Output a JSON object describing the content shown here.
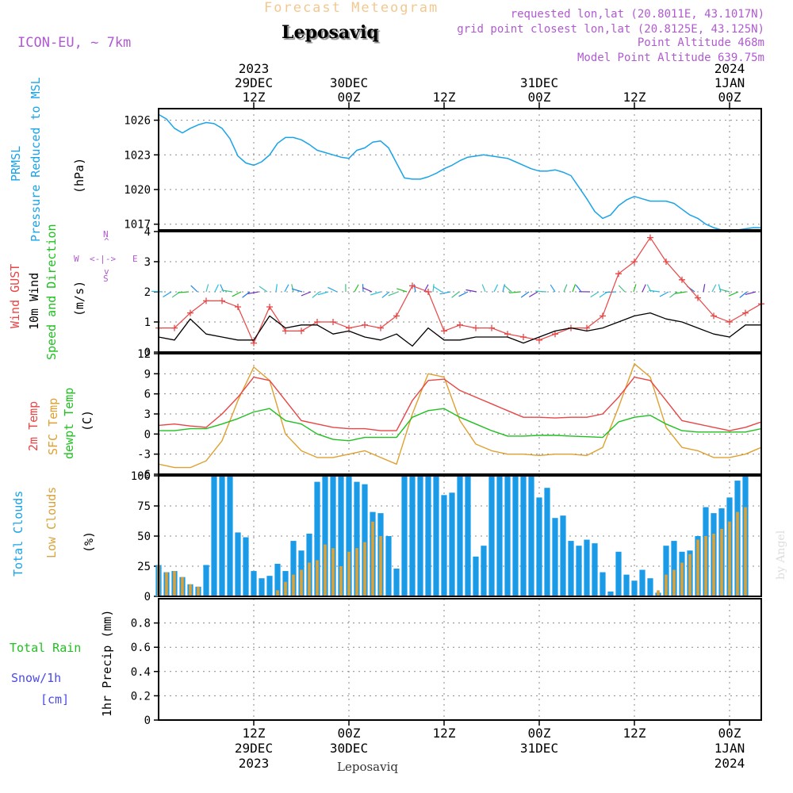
{
  "header": {
    "title": "Forecast Meteogram",
    "location": "Leposaviq",
    "model": "ICON-EU, ~ 7km",
    "requested": "requested lon,lat (20.8011E, 43.1017N)",
    "gridpoint": "grid point closest lon,lat (20.8125E, 43.125N)",
    "point_altitude": "Point Altitude 468m",
    "model_altitude": "Model Point Altitude 639.75m",
    "footer_location": "Leposaviq",
    "credit": "by Angel"
  },
  "top_axis": [
    {
      "lines": [
        "2023",
        "29DEC",
        "12Z"
      ],
      "t": 12
    },
    {
      "lines": [
        "30DEC",
        "00Z"
      ],
      "t": 24
    },
    {
      "lines": [
        "12Z"
      ],
      "t": 36
    },
    {
      "lines": [
        "31DEC",
        "00Z"
      ],
      "t": 48
    },
    {
      "lines": [
        "12Z"
      ],
      "t": 60
    },
    {
      "lines": [
        "2024",
        "1JAN",
        "00Z"
      ],
      "t": 72
    }
  ],
  "bottom_axis": [
    {
      "lines": [
        "12Z",
        "29DEC",
        "2023"
      ],
      "t": 12
    },
    {
      "lines": [
        "00Z",
        "30DEC"
      ],
      "t": 24
    },
    {
      "lines": [
        "12Z"
      ],
      "t": 36
    },
    {
      "lines": [
        "00Z",
        "31DEC"
      ],
      "t": 48
    },
    {
      "lines": [
        "12Z"
      ],
      "t": 60
    },
    {
      "lines": [
        "00Z",
        "1JAN",
        "2024"
      ],
      "t": 72
    }
  ],
  "panels": {
    "pressure": {
      "labels": [
        "PRMSL",
        "Pressure Reduced to MSL"
      ],
      "unit": "(hPa)",
      "ticks": [
        "1026",
        "1023",
        "1020",
        "1017"
      ]
    },
    "wind": {
      "labels": [
        "Wind GUST",
        "10m Wind",
        "Speed and Direction"
      ],
      "unit": "(m/s)",
      "ticks": [
        "4",
        "3",
        "2",
        "1",
        "0"
      ],
      "compass": {
        "n": "N",
        "s": "S",
        "w": "W",
        "e": "E",
        "arrow": "<-|->",
        "vert_top": "^",
        "vert_bot": "v"
      }
    },
    "temp": {
      "labels": [
        "2m Temp",
        "SFC Temp",
        "dewpt Temp"
      ],
      "unit": "(C)",
      "ticks": [
        "12",
        "9",
        "6",
        "3",
        "0",
        "-3",
        "-6"
      ]
    },
    "clouds": {
      "labels": [
        "Total Clouds",
        "Low Clouds"
      ],
      "unit": "(%)",
      "ticks": [
        "100",
        "75",
        "50",
        "25",
        "0"
      ]
    },
    "precip": {
      "labels": [
        "Total  Rain",
        "Snow/1h",
        "[cm]"
      ],
      "unit": "1hr Precip (mm)",
      "ticks": [
        "0.8",
        "0.6",
        "0.4",
        "0.2",
        "0"
      ]
    }
  },
  "colors": {
    "pressure": "#1aa3e8",
    "gust": "#e84545",
    "wind": "#000000",
    "temp2m": "#e84545",
    "sfc": "#e0a030",
    "dew": "#20c020",
    "total_clouds": "#1a9be8",
    "low_clouds": "#d9a23a",
    "rain": "#20c020",
    "snow": "#4a4ae8",
    "title": "#f3c890",
    "purple": "#b05ad0"
  },
  "chart_data": [
    {
      "type": "line",
      "name": "pressure",
      "x_unit": "hours",
      "x": [
        0,
        1,
        2,
        3,
        4,
        5,
        6,
        7,
        8,
        9,
        10,
        11,
        12,
        13,
        14,
        15,
        16,
        17,
        18,
        19,
        20,
        21,
        22,
        23,
        24,
        25,
        26,
        27,
        28,
        29,
        30,
        31,
        32,
        33,
        34,
        35,
        36,
        37,
        38,
        39,
        40,
        41,
        42,
        43,
        44,
        45,
        46,
        47,
        48,
        49,
        50,
        51,
        52,
        53,
        54,
        55,
        56,
        57,
        58,
        59,
        60,
        61,
        62,
        63,
        64,
        65,
        66,
        67,
        68,
        69,
        70,
        71,
        72,
        73,
        74,
        75,
        76
      ],
      "series": [
        {
          "values": [
            1026.5,
            1026.1,
            1025.3,
            1024.9,
            1025.3,
            1025.6,
            1025.8,
            1025.7,
            1025.3,
            1024.4,
            1022.9,
            1022.3,
            1022.1,
            1022.4,
            1023.0,
            1024.0,
            1024.5,
            1024.5,
            1024.3,
            1023.9,
            1023.4,
            1023.2,
            1023.0,
            1022.8,
            1022.7,
            1023.4,
            1023.6,
            1024.1,
            1024.2,
            1023.6,
            1022.3,
            1021.0,
            1020.9,
            1020.9,
            1021.1,
            1021.4,
            1021.8,
            1022.1,
            1022.5,
            1022.8,
            1022.9,
            1023.0,
            1022.9,
            1022.8,
            1022.7,
            1022.4,
            1022.1,
            1021.8,
            1021.6,
            1021.6,
            1021.7,
            1021.5,
            1021.2,
            1020.2,
            1019.2,
            1018.1,
            1017.5,
            1017.8,
            1018.6,
            1019.1,
            1019.4,
            1019.2,
            1019.0,
            1019.0,
            1019.0,
            1018.8,
            1018.3,
            1017.8,
            1017.5,
            1017.0,
            1016.7,
            1016.5,
            1016.4,
            1016.5,
            1016.6,
            1016.7,
            1016.7
          ]
        }
      ],
      "ylim": [
        1016.5,
        1027
      ]
    },
    {
      "type": "line",
      "name": "wind",
      "x_unit": "hours",
      "x": [
        0,
        2,
        4,
        6,
        8,
        10,
        12,
        14,
        16,
        18,
        20,
        22,
        24,
        26,
        28,
        30,
        32,
        34,
        36,
        38,
        40,
        42,
        44,
        46,
        48,
        50,
        52,
        54,
        56,
        58,
        60,
        62,
        64,
        66,
        68,
        70,
        72,
        74,
        76
      ],
      "series": [
        {
          "values": [
            0.8,
            0.8,
            1.3,
            1.7,
            1.7,
            1.5,
            0.3,
            1.5,
            0.7,
            0.7,
            1.0,
            1.0,
            0.8,
            0.9,
            0.8,
            1.2,
            2.2,
            2.0,
            0.7,
            0.9,
            0.8,
            0.8,
            0.6,
            0.5,
            0.4,
            0.6,
            0.8,
            0.8,
            1.2,
            2.6,
            3.0,
            3.8,
            3.0,
            2.4,
            1.8,
            1.2,
            1.0,
            1.3,
            1.6
          ]
        },
        {
          "values": [
            0.5,
            0.4,
            1.1,
            0.6,
            0.5,
            0.4,
            0.4,
            1.2,
            0.8,
            0.9,
            0.9,
            0.6,
            0.7,
            0.5,
            0.4,
            0.6,
            0.2,
            0.8,
            0.4,
            0.4,
            0.5,
            0.5,
            0.5,
            0.3,
            0.5,
            0.7,
            0.8,
            0.7,
            0.8,
            1.0,
            1.2,
            1.3,
            1.1,
            1.0,
            0.8,
            0.6,
            0.5,
            0.9,
            0.9
          ]
        }
      ],
      "ylim": [
        0,
        4
      ]
    },
    {
      "type": "line",
      "name": "temperature",
      "x_unit": "hours",
      "x": [
        0,
        2,
        4,
        6,
        8,
        10,
        12,
        14,
        16,
        18,
        20,
        22,
        24,
        26,
        28,
        30,
        32,
        34,
        36,
        38,
        40,
        42,
        44,
        46,
        48,
        50,
        52,
        54,
        56,
        58,
        60,
        62,
        64,
        66,
        68,
        70,
        72,
        74,
        76
      ],
      "series": [
        {
          "values": [
            1.3,
            1.5,
            1.2,
            1.0,
            3.0,
            5.5,
            8.5,
            8.0,
            5.0,
            2.0,
            1.5,
            1.0,
            0.8,
            0.8,
            0.5,
            0.5,
            5.0,
            8.0,
            8.2,
            6.5,
            5.5,
            4.5,
            3.5,
            2.5,
            2.5,
            2.4,
            2.5,
            2.5,
            3.0,
            5.5,
            8.5,
            8.0,
            5.0,
            2.0,
            1.5,
            1.0,
            0.5,
            1.0,
            1.8
          ]
        },
        {
          "values": [
            -4.5,
            -5.0,
            -5.0,
            -4.0,
            -1.0,
            5.0,
            10.0,
            8.0,
            0.0,
            -2.5,
            -3.5,
            -3.5,
            -3.0,
            -2.5,
            -3.5,
            -4.5,
            3.0,
            9.0,
            8.5,
            2.0,
            -1.5,
            -2.5,
            -3.0,
            -3.0,
            -3.2,
            -3.0,
            -3.0,
            -3.2,
            -2.0,
            4.0,
            10.5,
            8.5,
            1.0,
            -2.0,
            -2.5,
            -3.5,
            -3.5,
            -3.0,
            -2.0
          ]
        },
        {
          "values": [
            0.5,
            0.5,
            0.8,
            0.8,
            1.5,
            2.3,
            3.3,
            3.8,
            2.0,
            1.5,
            0.0,
            -0.8,
            -1.0,
            -0.5,
            -0.5,
            -0.5,
            2.5,
            3.5,
            3.8,
            2.5,
            1.5,
            0.5,
            -0.3,
            -0.3,
            -0.2,
            -0.2,
            -0.3,
            -0.4,
            -0.5,
            1.8,
            2.5,
            2.8,
            1.5,
            0.5,
            0.3,
            0.3,
            0.3,
            0.3,
            0.8
          ]
        }
      ],
      "ylim": [
        -6,
        12
      ]
    },
    {
      "type": "bar",
      "name": "clouds",
      "x_unit": "hours",
      "x": [
        0,
        1,
        2,
        3,
        4,
        5,
        6,
        7,
        8,
        9,
        10,
        11,
        12,
        13,
        14,
        15,
        16,
        17,
        18,
        19,
        20,
        21,
        22,
        23,
        24,
        25,
        26,
        27,
        28,
        29,
        30,
        31,
        32,
        33,
        34,
        35,
        36,
        37,
        38,
        39,
        40,
        41,
        42,
        43,
        44,
        45,
        46,
        47,
        48,
        49,
        50,
        51,
        52,
        53,
        54,
        55,
        56,
        57,
        58,
        59,
        60,
        61,
        62,
        63,
        64,
        65,
        66,
        67,
        68,
        69,
        70,
        71,
        72,
        73,
        74,
        75,
        76
      ],
      "series": [
        {
          "values": [
            26,
            20,
            21,
            16,
            10,
            8,
            26,
            100,
            100,
            100,
            53,
            49,
            21,
            15,
            17,
            27,
            21,
            46,
            38,
            52,
            95,
            100,
            100,
            100,
            100,
            95,
            93,
            70,
            69,
            50,
            23,
            100,
            100,
            100,
            100,
            100,
            84,
            86,
            100,
            100,
            33,
            42,
            100,
            100,
            100,
            100,
            100,
            100,
            82,
            90,
            65,
            67,
            46,
            42,
            47,
            44,
            20,
            4,
            37,
            18,
            13,
            22,
            15,
            3,
            42,
            46,
            37,
            38,
            50,
            74,
            69,
            73,
            82,
            96,
            100,
            0,
            0
          ]
        },
        {
          "values": [
            26,
            20,
            21,
            16,
            10,
            8,
            0,
            0,
            0,
            0,
            0,
            0,
            0,
            0,
            0,
            5,
            12,
            18,
            22,
            28,
            30,
            43,
            40,
            25,
            37,
            40,
            45,
            62,
            50,
            0,
            0,
            0,
            0,
            0,
            0,
            0,
            0,
            0,
            0,
            0,
            0,
            0,
            0,
            0,
            0,
            0,
            0,
            0,
            0,
            0,
            0,
            0,
            0,
            0,
            0,
            0,
            0,
            0,
            0,
            0,
            0,
            0,
            0,
            5,
            18,
            22,
            28,
            35,
            47,
            50,
            52,
            56,
            62,
            70,
            74,
            0,
            0
          ]
        }
      ],
      "ylim": [
        0,
        100
      ]
    },
    {
      "type": "bar",
      "name": "precipitation",
      "x_unit": "hours",
      "series": [
        {
          "values": []
        }
      ],
      "ylim": [
        0,
        1
      ]
    }
  ]
}
